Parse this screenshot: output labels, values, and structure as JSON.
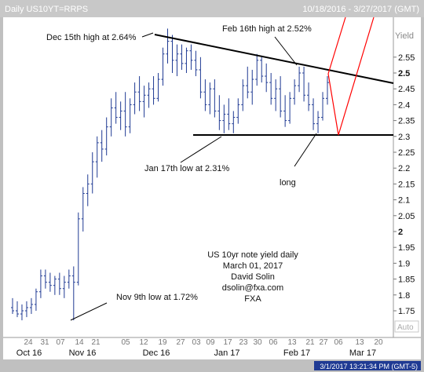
{
  "header": {
    "title": "Daily US10YT=RRPS",
    "date_range": "10/18/2016 - 3/27/2017 (GMT)"
  },
  "footer": {
    "timestamp": "3/1/2017 13:21:34 PM (GMT-5)"
  },
  "chart_data": {
    "type": "candlestick",
    "ylabel": "Yield",
    "y_ticks": [
      2.55,
      2.5,
      2.45,
      2.4,
      2.35,
      2.3,
      2.25,
      2.2,
      2.15,
      2.1,
      2.05,
      2,
      1.95,
      1.9,
      1.85,
      1.8,
      1.75
    ],
    "y_tick_labels": [
      "2.55",
      "2.5",
      "2.45",
      "2.4",
      "2.35",
      "2.3",
      "2.25",
      "2.2",
      "2.15",
      "2.1",
      "2.05",
      "2",
      "1.95",
      "1.9",
      "1.85",
      "1.8",
      "1.75"
    ],
    "y_highlight": [
      "2.5",
      "2"
    ],
    "ylim": [
      1.7,
      2.63
    ],
    "auto_label": "Auto",
    "x_day_labels": [
      "24",
      "31",
      "07",
      "14",
      "21",
      "05",
      "12",
      "19",
      "27",
      "03",
      "09",
      "17",
      "23",
      "30",
      "06",
      "13",
      "21",
      "27",
      "06",
      "13",
      "20"
    ],
    "x_month_labels": [
      "Oct 16",
      "Nov 16",
      "Dec 16",
      "Jan 17",
      "Feb 17",
      "Mar 17"
    ],
    "bars": [
      [
        1.76,
        1.79,
        1.74,
        1.75
      ],
      [
        1.75,
        1.78,
        1.73,
        1.74
      ],
      [
        1.74,
        1.77,
        1.72,
        1.75
      ],
      [
        1.75,
        1.78,
        1.73,
        1.76
      ],
      [
        1.76,
        1.79,
        1.74,
        1.77
      ],
      [
        1.77,
        1.82,
        1.75,
        1.81
      ],
      [
        1.81,
        1.88,
        1.79,
        1.86
      ],
      [
        1.86,
        1.88,
        1.82,
        1.84
      ],
      [
        1.84,
        1.87,
        1.81,
        1.83
      ],
      [
        1.83,
        1.86,
        1.8,
        1.85
      ],
      [
        1.85,
        1.87,
        1.8,
        1.82
      ],
      [
        1.82,
        1.86,
        1.79,
        1.84
      ],
      [
        1.84,
        1.88,
        1.82,
        1.86
      ],
      [
        1.86,
        1.89,
        1.72,
        1.84
      ],
      [
        1.84,
        2.06,
        1.83,
        2.04
      ],
      [
        2.04,
        2.14,
        2.0,
        2.12
      ],
      [
        2.12,
        2.18,
        2.08,
        2.15
      ],
      [
        2.15,
        2.25,
        2.12,
        2.22
      ],
      [
        2.22,
        2.3,
        2.17,
        2.28
      ],
      [
        2.28,
        2.32,
        2.22,
        2.26
      ],
      [
        2.26,
        2.36,
        2.24,
        2.33
      ],
      [
        2.33,
        2.42,
        2.3,
        2.39
      ],
      [
        2.39,
        2.44,
        2.34,
        2.36
      ],
      [
        2.36,
        2.41,
        2.32,
        2.38
      ],
      [
        2.38,
        2.44,
        2.3,
        2.33
      ],
      [
        2.33,
        2.42,
        2.31,
        2.4
      ],
      [
        2.4,
        2.47,
        2.37,
        2.44
      ],
      [
        2.44,
        2.49,
        2.38,
        2.41
      ],
      [
        2.41,
        2.46,
        2.36,
        2.43
      ],
      [
        2.43,
        2.47,
        2.39,
        2.45
      ],
      [
        2.45,
        2.49,
        2.4,
        2.42
      ],
      [
        2.42,
        2.5,
        2.41,
        2.48
      ],
      [
        2.48,
        2.58,
        2.46,
        2.56
      ],
      [
        2.56,
        2.64,
        2.53,
        2.6
      ],
      [
        2.6,
        2.62,
        2.5,
        2.54
      ],
      [
        2.54,
        2.59,
        2.49,
        2.56
      ],
      [
        2.56,
        2.59,
        2.51,
        2.53
      ],
      [
        2.53,
        2.58,
        2.5,
        2.57
      ],
      [
        2.57,
        2.59,
        2.51,
        2.54
      ],
      [
        2.54,
        2.57,
        2.49,
        2.51
      ],
      [
        2.51,
        2.55,
        2.42,
        2.44
      ],
      [
        2.44,
        2.48,
        2.38,
        2.4
      ],
      [
        2.4,
        2.47,
        2.37,
        2.45
      ],
      [
        2.45,
        2.48,
        2.36,
        2.38
      ],
      [
        2.38,
        2.43,
        2.32,
        2.35
      ],
      [
        2.35,
        2.4,
        2.31,
        2.37
      ],
      [
        2.37,
        2.42,
        2.32,
        2.34
      ],
      [
        2.34,
        2.38,
        2.31,
        2.36
      ],
      [
        2.36,
        2.42,
        2.34,
        2.4
      ],
      [
        2.4,
        2.48,
        2.38,
        2.46
      ],
      [
        2.46,
        2.52,
        2.42,
        2.44
      ],
      [
        2.44,
        2.51,
        2.4,
        2.48
      ],
      [
        2.48,
        2.56,
        2.46,
        2.54
      ],
      [
        2.54,
        2.55,
        2.47,
        2.49
      ],
      [
        2.49,
        2.53,
        2.44,
        2.47
      ],
      [
        2.47,
        2.5,
        2.4,
        2.42
      ],
      [
        2.42,
        2.48,
        2.38,
        2.45
      ],
      [
        2.45,
        2.49,
        2.36,
        2.38
      ],
      [
        2.38,
        2.43,
        2.33,
        2.35
      ],
      [
        2.35,
        2.44,
        2.34,
        2.42
      ],
      [
        2.42,
        2.48,
        2.4,
        2.46
      ],
      [
        2.46,
        2.52,
        2.44,
        2.5
      ],
      [
        2.5,
        2.52,
        2.41,
        2.43
      ],
      [
        2.43,
        2.47,
        2.38,
        2.4
      ],
      [
        2.4,
        2.42,
        2.32,
        2.34
      ],
      [
        2.34,
        2.38,
        2.31,
        2.36
      ],
      [
        2.36,
        2.44,
        2.35,
        2.42
      ],
      [
        2.42,
        2.49,
        2.4,
        2.47
      ]
    ],
    "annotations": [
      "Dec 15th high at 2.64%",
      "Feb 16th high at 2.52%",
      "Jan 17th low at 2.31%",
      "long",
      "Nov 9th low at 1.72%"
    ],
    "info_block": [
      "US 10yr note yield daily",
      "March 01, 2017",
      "David Solin",
      "dsolin@fxa.com",
      "FXA"
    ],
    "colors": {
      "background": "#ffffff",
      "bars": "#1f3a93",
      "trendlines": "#000000",
      "projection": "#ff0000",
      "frame": "#c0c0c0"
    }
  }
}
